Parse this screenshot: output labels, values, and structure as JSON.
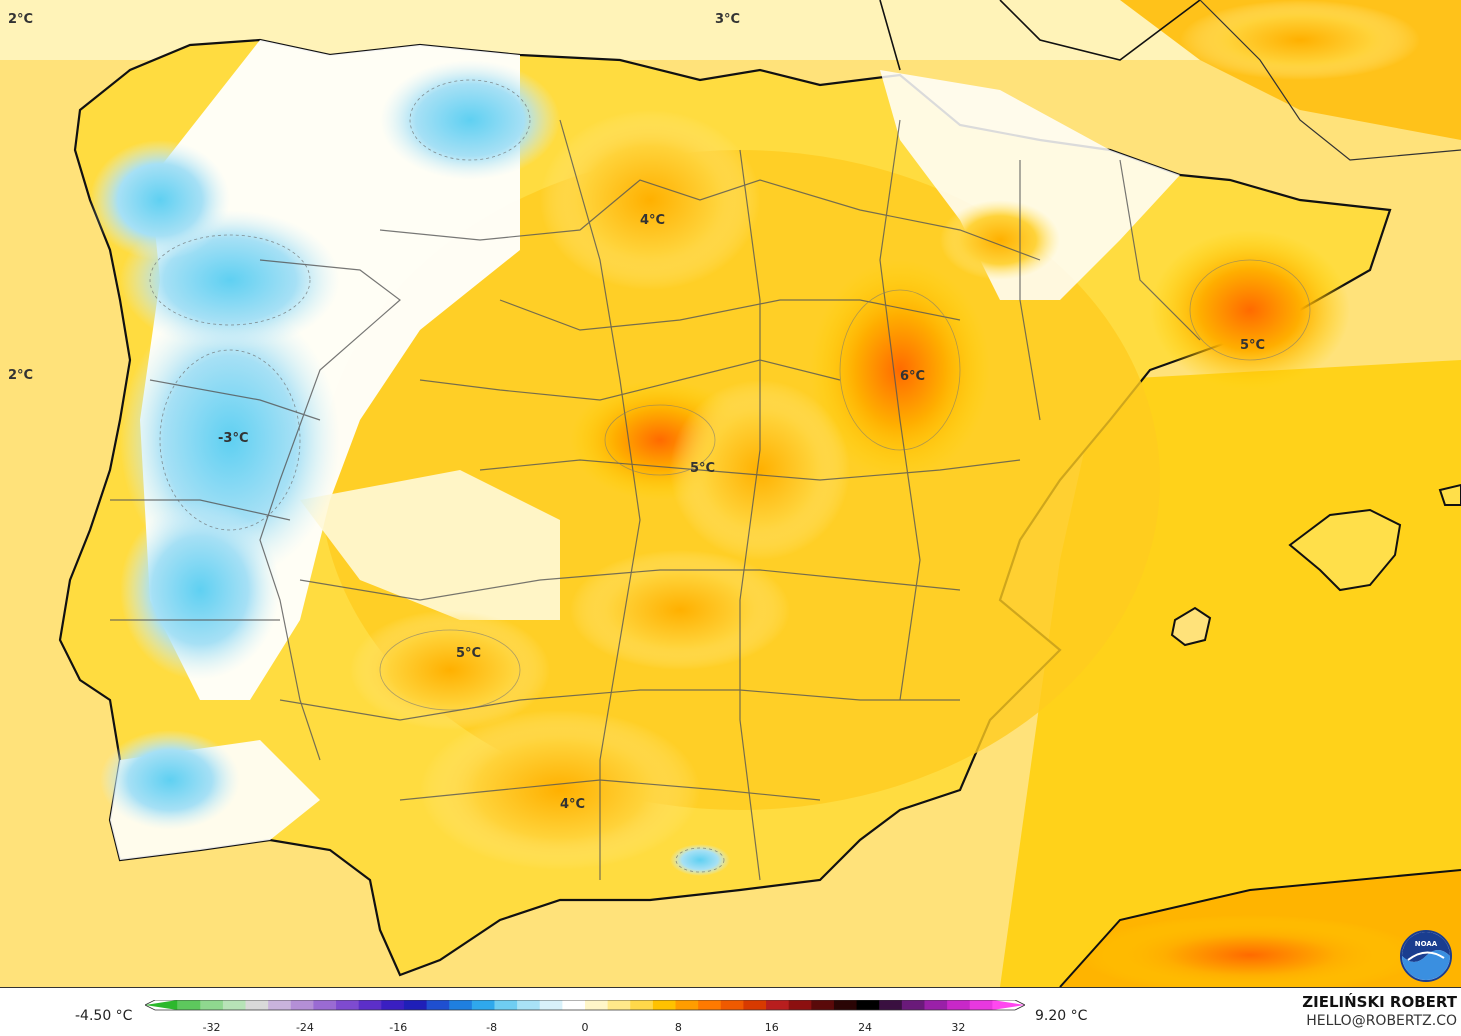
{
  "map_labels": [
    {
      "text": "2°C",
      "name": "label-2c-top-left"
    },
    {
      "text": "3°C",
      "name": "label-3c-top"
    },
    {
      "text": "2°C",
      "name": "label-2c-west"
    },
    {
      "text": "4°C",
      "name": "label-4c-north"
    },
    {
      "text": "6°C",
      "name": "label-6c-aragon"
    },
    {
      "text": "5°C",
      "name": "label-5c-catalonia"
    },
    {
      "text": "-3°C",
      "name": "label-minus3c-portugal"
    },
    {
      "text": "5°C",
      "name": "label-5c-madrid"
    },
    {
      "text": "5°C",
      "name": "label-5c-extremadura"
    },
    {
      "text": "4°C",
      "name": "label-4c-andalusia"
    }
  ],
  "legend": {
    "min_label": "-4.50 °C",
    "max_label": "9.20 °C",
    "ticks": [
      "-32",
      "-24",
      "-16",
      "-8",
      "0",
      "8",
      "16",
      "24",
      "32"
    ],
    "colors": [
      "#2db82d",
      "#5dc85d",
      "#8fd88f",
      "#b7e3b7",
      "#d9d9d9",
      "#c9b3dc",
      "#b48fd6",
      "#9a6bd3",
      "#7e4bd0",
      "#5c2fc9",
      "#3a1fc2",
      "#1f1fb8",
      "#1f4fd0",
      "#1f7fe0",
      "#2fa8ec",
      "#6fcdf2",
      "#a8e2f6",
      "#d8f1fa",
      "#ffffff",
      "#fff6c8",
      "#ffe98a",
      "#ffd84a",
      "#ffc200",
      "#ff9d00",
      "#ff7a00",
      "#f05a00",
      "#d83a00",
      "#b81e1e",
      "#8c1010",
      "#5a0a0a",
      "#2a0505",
      "#000000",
      "#3a1040",
      "#6a1a7a",
      "#9a20a8",
      "#c828c8",
      "#e838e0",
      "#ff48f0"
    ]
  },
  "brand": {
    "name": "ZIELIŃSKI ROBERT",
    "email": "HELLO@ROBERTZ.CO"
  },
  "logo": {
    "text": "NOAA",
    "icon": "noaa-logo-icon"
  }
}
